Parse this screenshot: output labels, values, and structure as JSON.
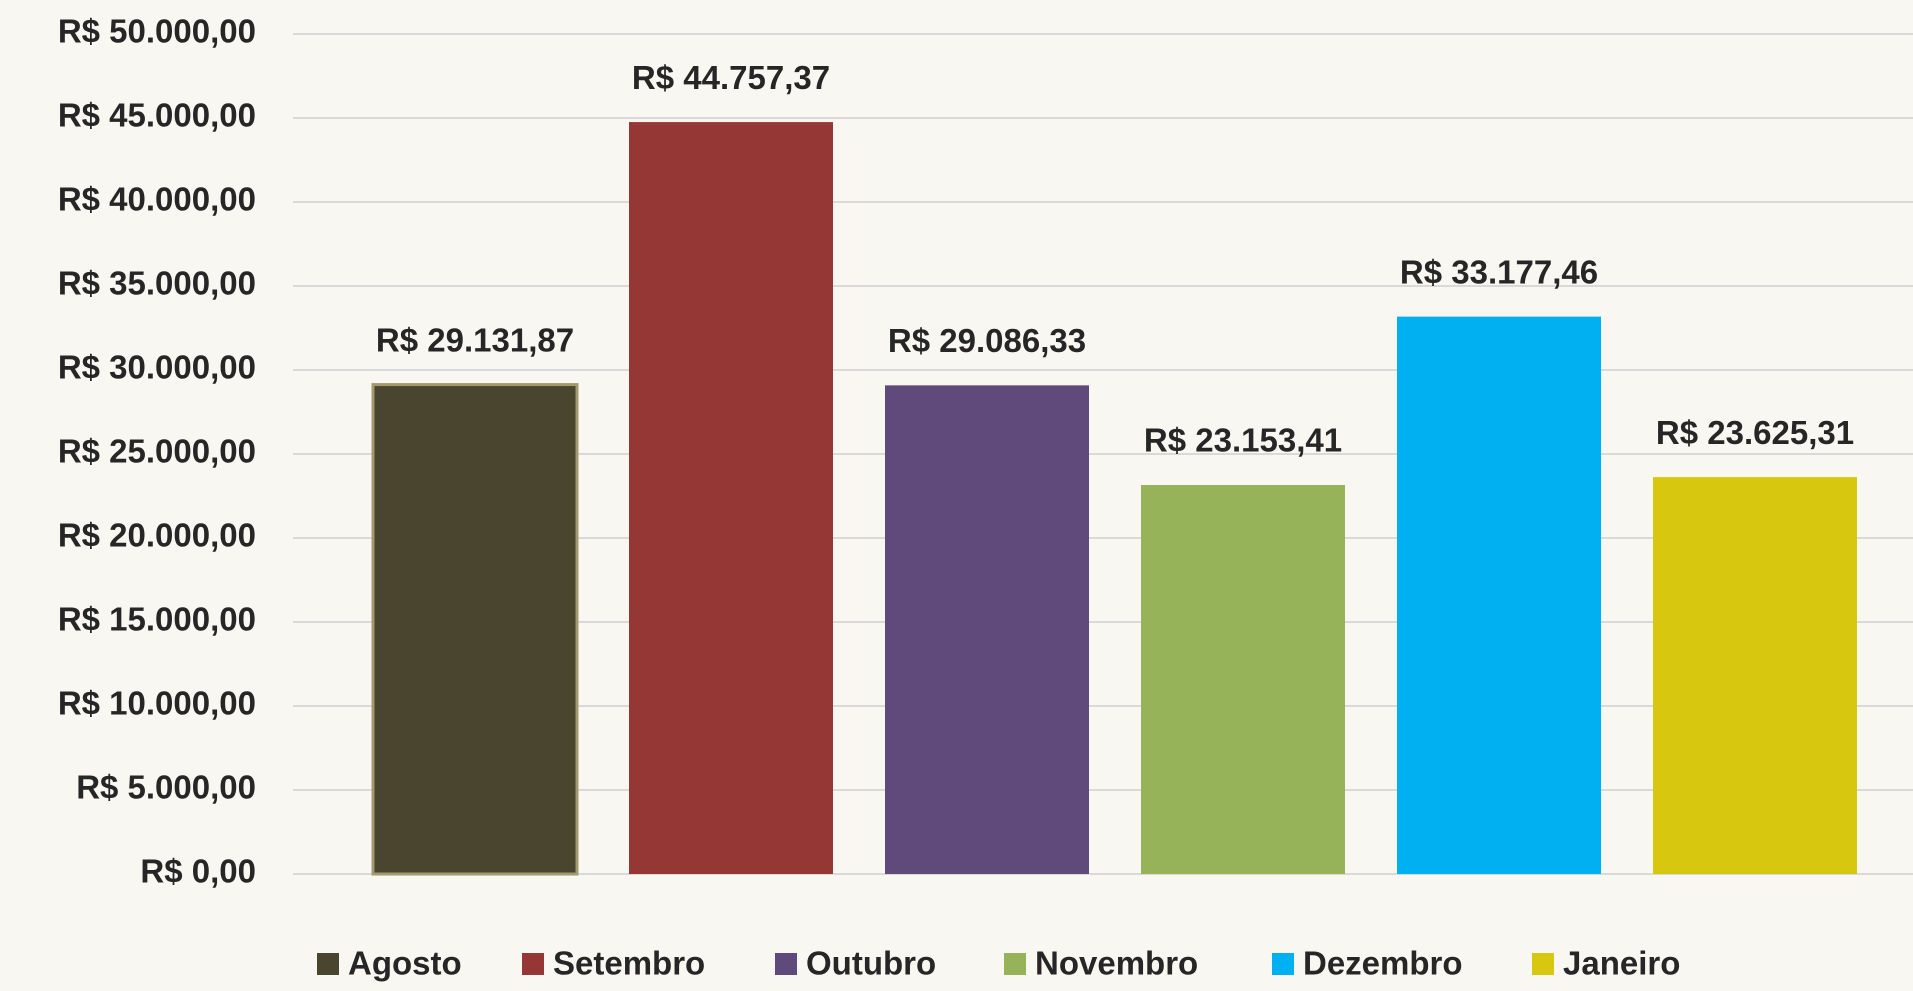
{
  "chart_data": {
    "type": "bar",
    "categories": [
      "Agosto",
      "Setembro",
      "Outubro",
      "Novembro",
      "Dezembro",
      "Janeiro"
    ],
    "values": [
      29131.87,
      44757.37,
      29086.33,
      23153.41,
      33177.46,
      23625.31
    ],
    "value_labels": [
      "R$ 29.131,87",
      "R$ 44.757,37",
      "R$ 29.086,33",
      "R$ 23.153,41",
      "R$ 33.177,46",
      "R$ 23.625,31"
    ],
    "colors": [
      "#4a452e",
      "#953735",
      "#604a7b",
      "#97b35a",
      "#00b0f0",
      "#d7c80f"
    ],
    "ylim": [
      0,
      50000
    ],
    "yticks": [
      {
        "value": 0,
        "label": "R$ 0,00"
      },
      {
        "value": 5000,
        "label": "R$ 5.000,00"
      },
      {
        "value": 10000,
        "label": "R$ 10.000,00"
      },
      {
        "value": 15000,
        "label": "R$ 15.000,00"
      },
      {
        "value": 20000,
        "label": "R$ 20.000,00"
      },
      {
        "value": 25000,
        "label": "R$ 25.000,00"
      },
      {
        "value": 30000,
        "label": "R$ 30.000,00"
      },
      {
        "value": 35000,
        "label": "R$ 35.000,00"
      },
      {
        "value": 40000,
        "label": "R$ 40.000,00"
      },
      {
        "value": 45000,
        "label": "R$ 45.000,00"
      },
      {
        "value": 50000,
        "label": "R$ 50.000,00"
      }
    ],
    "grid": true,
    "legend": "bottom"
  }
}
